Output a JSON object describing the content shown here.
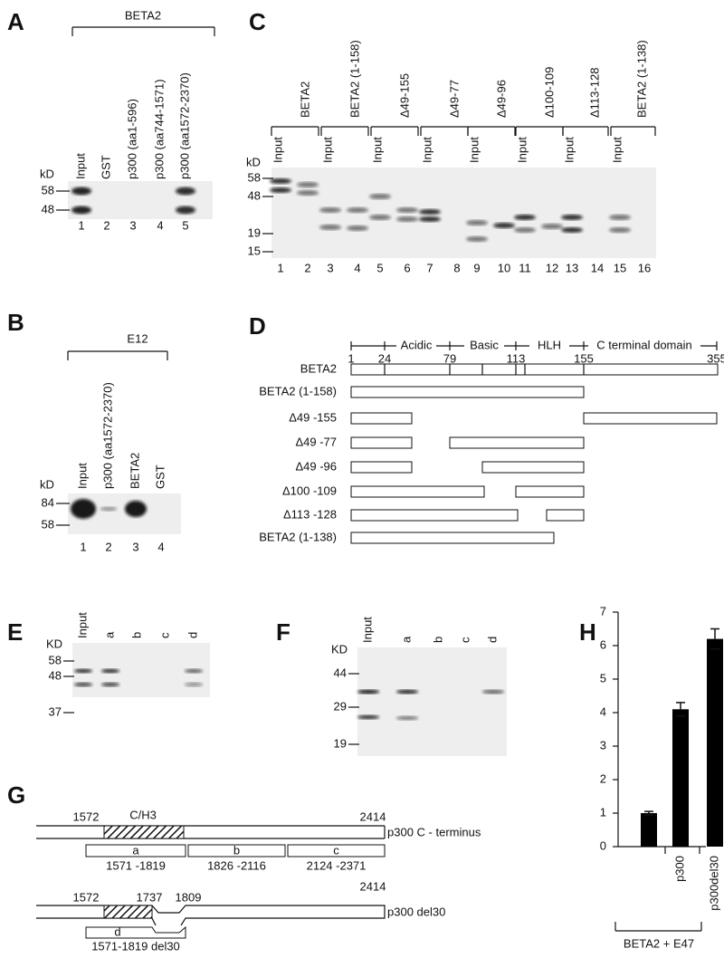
{
  "panel_a": {
    "label": "A",
    "group": "BETA2",
    "unit": "kD",
    "markers": [
      "58",
      "48"
    ],
    "lanes": [
      "Input",
      "GST",
      "p300 (aa1-596)",
      "p300 (aa744-1571)",
      "p300 (aa1572-2370)"
    ],
    "lane_numbers": [
      "1",
      "2",
      "3",
      "4",
      "5"
    ]
  },
  "panel_b": {
    "label": "B",
    "group": "E12",
    "unit": "kD",
    "markers": [
      "84",
      "58"
    ],
    "lanes": [
      "Input",
      "p300 (aa1572-2370)",
      "BETA2",
      "GST"
    ],
    "lane_numbers": [
      "1",
      "2",
      "3",
      "4"
    ]
  },
  "panel_c": {
    "label": "C",
    "unit": "kD",
    "markers": [
      "58",
      "48",
      "19",
      "15"
    ],
    "input_label": "Input",
    "groups": [
      "BETA2",
      "BETA2 (1-158)",
      "Δ49-155",
      "Δ49-77",
      "Δ49-96",
      "Δ100-109",
      "Δ113-128",
      "BETA2 (1-138)"
    ],
    "lane_numbers": [
      "1",
      "2",
      "3",
      "4",
      "5",
      "6",
      "7",
      "8",
      "9",
      "10",
      "11",
      "12",
      "13",
      "14",
      "15",
      "16"
    ]
  },
  "panel_d": {
    "label": "D",
    "domains": [
      "Acidic",
      "Basic",
      "HLH",
      "C terminal domain"
    ],
    "positions": [
      "1",
      "24",
      "79",
      "113",
      "155",
      "355"
    ],
    "constructs": [
      "BETA2",
      "BETA2 (1-158)",
      "Δ49 -155",
      "Δ49 -77",
      "Δ49 -96",
      "Δ100 -109",
      "Δ113 -128",
      "BETA2 (1-138)"
    ]
  },
  "panel_e": {
    "label": "E",
    "unit": "KD",
    "markers": [
      "58",
      "48",
      "37"
    ],
    "lanes": [
      "Input",
      "a",
      "b",
      "c",
      "d"
    ]
  },
  "panel_f": {
    "label": "F",
    "unit": "KD",
    "markers": [
      "44",
      "29",
      "19"
    ],
    "lanes": [
      "Input",
      "a",
      "b",
      "c",
      "d"
    ]
  },
  "panel_g": {
    "label": "G",
    "top": {
      "start": "1572",
      "domain": "C/H3",
      "end": "2414",
      "name": "p300 C - terminus",
      "fragments": [
        {
          "letter": "a",
          "range": "1571 -1819"
        },
        {
          "letter": "b",
          "range": "1826 -2116"
        },
        {
          "letter": "c",
          "range": "2124 -2371"
        }
      ]
    },
    "bottom": {
      "start": "1572",
      "cut_start": "1737",
      "cut_end": "1809",
      "end": "2414",
      "name": "p300 del30",
      "fragment": {
        "letter": "d",
        "range": "1571-1819 del30"
      }
    }
  },
  "chart_data": {
    "type": "bar",
    "label": "H",
    "categories": [
      null,
      "p300",
      "p300del30"
    ],
    "values": [
      1.0,
      4.1,
      6.2
    ],
    "errors": [
      0.05,
      0.2,
      0.3
    ],
    "ylim": [
      0,
      7
    ],
    "yticks": [
      0,
      1,
      2,
      3,
      4,
      5,
      6,
      7
    ],
    "xlabel": "BETA2 + E47",
    "color": "#000000"
  }
}
